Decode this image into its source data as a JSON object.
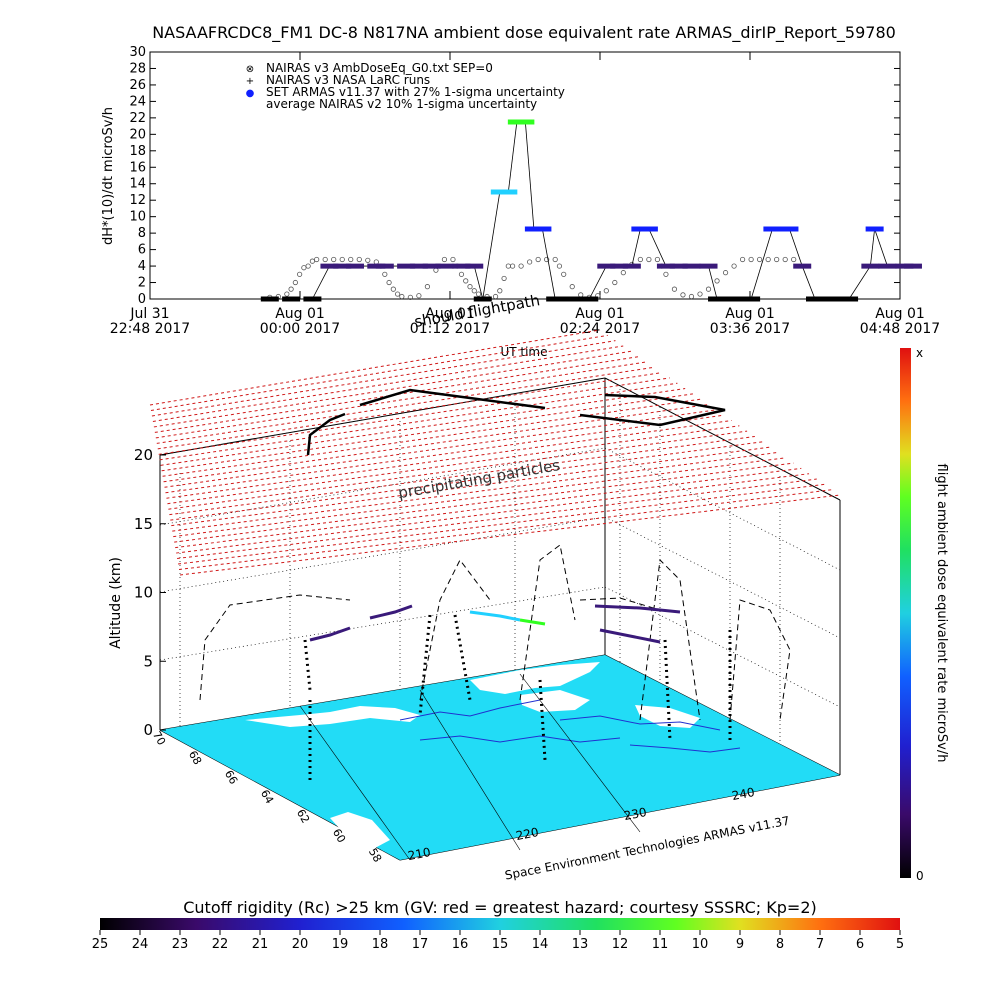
{
  "title": "NASAAFRCDC8_FM1 DC-8   N817NA ambient dose equivalent rate ARMAS_dirIP_Report_59780",
  "chart_data": [
    {
      "type": "scatter",
      "ylabel": "dH*(10)/dt microSv/h",
      "xlabel": "UT time",
      "ylim": [
        0,
        30
      ],
      "yticks": [
        "0",
        "2",
        "4",
        "6",
        "8",
        "10",
        "12",
        "14",
        "16",
        "18",
        "20",
        "22",
        "24",
        "26",
        "28",
        "30"
      ],
      "xtick_labels": [
        [
          "Jul 31",
          "22:48 2017"
        ],
        [
          "Aug 01",
          "00:00 2017"
        ],
        [
          "Aug 01",
          "01:12 2017"
        ],
        [
          "Aug 01",
          "02:24 2017"
        ],
        [
          "Aug 01",
          "03:36 2017"
        ],
        [
          "Aug 01",
          "04:48 2017"
        ]
      ],
      "legend": [
        {
          "symbol": "⊗",
          "label": "NAIRAS v3 AmbDoseEq_G0.txt SEP=0"
        },
        {
          "symbol": "+",
          "label": "NAIRAS v3 NASA LaRC runs"
        },
        {
          "symbol": "●",
          "label": "SET ARMAS v11.37 with 27% 1-sigma uncertainty"
        },
        {
          "symbol": "",
          "label": "average NAIRAS v2 10% 1-sigma uncertainty"
        }
      ],
      "series": [
        {
          "name": "NAIRAS v3 AmbDoseEq_G0.txt SEP=0",
          "points": [
            [
              0.35,
              0.2
            ],
            [
              0.45,
              0.3
            ],
            [
              0.55,
              0.6
            ],
            [
              0.6,
              1.2
            ],
            [
              0.65,
              2.0
            ],
            [
              0.7,
              3.0
            ],
            [
              0.75,
              3.8
            ],
            [
              0.8,
              4.0
            ],
            [
              0.85,
              4.6
            ],
            [
              0.9,
              4.8
            ],
            [
              1.0,
              4.8
            ],
            [
              1.1,
              4.8
            ],
            [
              1.2,
              4.8
            ],
            [
              1.3,
              4.8
            ],
            [
              1.4,
              4.8
            ],
            [
              1.5,
              4.7
            ],
            [
              1.6,
              4.5
            ],
            [
              1.65,
              4.0
            ],
            [
              1.7,
              3.0
            ],
            [
              1.75,
              2.0
            ],
            [
              1.8,
              1.2
            ],
            [
              1.85,
              0.6
            ],
            [
              1.9,
              0.3
            ],
            [
              2.0,
              0.2
            ],
            [
              2.1,
              0.4
            ],
            [
              2.2,
              1.5
            ],
            [
              2.3,
              3.5
            ],
            [
              2.4,
              4.8
            ],
            [
              2.5,
              4.8
            ],
            [
              2.55,
              4.0
            ],
            [
              2.6,
              3.0
            ],
            [
              2.65,
              2.2
            ],
            [
              2.7,
              1.5
            ],
            [
              2.75,
              1.0
            ],
            [
              2.8,
              0.6
            ],
            [
              2.9,
              0.3
            ],
            [
              3.0,
              0.3
            ],
            [
              3.05,
              1.0
            ],
            [
              3.1,
              2.5
            ],
            [
              3.15,
              4.0
            ],
            [
              3.2,
              4.0
            ],
            [
              3.3,
              4.0
            ],
            [
              3.4,
              4.5
            ],
            [
              3.5,
              4.8
            ],
            [
              3.6,
              4.8
            ],
            [
              3.7,
              4.8
            ],
            [
              3.75,
              4.0
            ],
            [
              3.8,
              3.0
            ],
            [
              3.9,
              1.5
            ],
            [
              4.0,
              0.5
            ],
            [
              4.1,
              0.2
            ],
            [
              4.2,
              0.4
            ],
            [
              4.3,
              1.0
            ],
            [
              4.4,
              2.0
            ],
            [
              4.5,
              3.2
            ],
            [
              4.6,
              4.2
            ],
            [
              4.7,
              4.8
            ],
            [
              4.8,
              4.8
            ],
            [
              4.9,
              4.8
            ],
            [
              4.95,
              4.0
            ],
            [
              5.0,
              3.0
            ],
            [
              5.1,
              1.2
            ],
            [
              5.2,
              0.5
            ],
            [
              5.3,
              0.3
            ],
            [
              5.4,
              0.6
            ],
            [
              5.5,
              1.2
            ],
            [
              5.6,
              2.2
            ],
            [
              5.7,
              3.2
            ],
            [
              5.8,
              4.0
            ],
            [
              5.9,
              4.8
            ],
            [
              6.0,
              4.8
            ],
            [
              6.1,
              4.8
            ],
            [
              6.2,
              4.8
            ],
            [
              6.3,
              4.8
            ],
            [
              6.4,
              4.8
            ],
            [
              6.5,
              4.8
            ]
          ]
        },
        {
          "name": "SET ARMAS v11.37 with 27% 1-sigma uncertainty",
          "points": [
            [
              0.35,
              0
            ],
            [
              0.6,
              0
            ],
            [
              0.85,
              0
            ],
            [
              1.05,
              4.0
            ],
            [
              1.2,
              4.0
            ],
            [
              1.35,
              4.0
            ],
            [
              1.6,
              4.0
            ],
            [
              1.7,
              4.0
            ],
            [
              1.95,
              4.0
            ],
            [
              2.1,
              4.0
            ],
            [
              2.25,
              4.0
            ],
            [
              2.4,
              4.0
            ],
            [
              2.6,
              4.0
            ],
            [
              2.75,
              4.0
            ],
            [
              2.85,
              0
            ],
            [
              3.05,
              13.0
            ],
            [
              3.15,
              13.0
            ],
            [
              3.25,
              21.5
            ],
            [
              3.35,
              21.5
            ],
            [
              3.45,
              8.5
            ],
            [
              3.55,
              8.5
            ],
            [
              3.7,
              0
            ],
            [
              3.9,
              0
            ],
            [
              4.1,
              0
            ],
            [
              4.3,
              4.0
            ],
            [
              4.45,
              4.0
            ],
            [
              4.6,
              4.0
            ],
            [
              4.7,
              8.5
            ],
            [
              4.8,
              8.5
            ],
            [
              5.0,
              4.0
            ],
            [
              5.15,
              4.0
            ],
            [
              5.3,
              4.0
            ],
            [
              5.5,
              4.0
            ],
            [
              5.6,
              0
            ],
            [
              5.8,
              0
            ],
            [
              6.0,
              0
            ],
            [
              6.25,
              8.5
            ],
            [
              6.45,
              8.5
            ],
            [
              6.6,
              4.0
            ],
            [
              6.75,
              0
            ],
            [
              6.95,
              0
            ],
            [
              7.15,
              0
            ],
            [
              7.4,
              4.0
            ],
            [
              7.6,
              4.0
            ],
            [
              7.8,
              4.0
            ],
            [
              7.9,
              4.0
            ],
            [
              7.45,
              8.5
            ]
          ]
        }
      ]
    },
    {
      "type": "area",
      "ylabel": "Altitude (km)",
      "zticks": [
        "0",
        "5",
        "10",
        "15",
        "20"
      ],
      "xticks": [
        "210",
        "220",
        "230",
        "240"
      ],
      "yticks": [
        "58",
        "60",
        "62",
        "64",
        "66",
        "68",
        "70"
      ],
      "annotations": [
        "should flightpath",
        "precipitating particles",
        "Space Environment Technologies ARMAS v11.37"
      ]
    }
  ],
  "colorbar_right": {
    "label": "flight ambient dose equivalent rate microSv/h",
    "top_label": "x",
    "bottom_label": "0"
  },
  "colorbar_bottom": {
    "title": "Cutoff rigidity (Rc) >25 km (GV: red = greatest hazard; courtesy SSSRC; Kp=2)",
    "ticks": [
      "25",
      "24",
      "23",
      "22",
      "21",
      "20",
      "19",
      "18",
      "17",
      "16",
      "15",
      "14",
      "13",
      "12",
      "11",
      "10",
      "9",
      "8",
      "7",
      "6",
      "5"
    ]
  },
  "colors": {
    "navy_purple": "#3a1a7a",
    "blue": "#1020ff",
    "cyan": "#20d0ff",
    "green": "#30ff20",
    "red_mesh": "#d01818",
    "map_cyan": "#22dcf6"
  }
}
